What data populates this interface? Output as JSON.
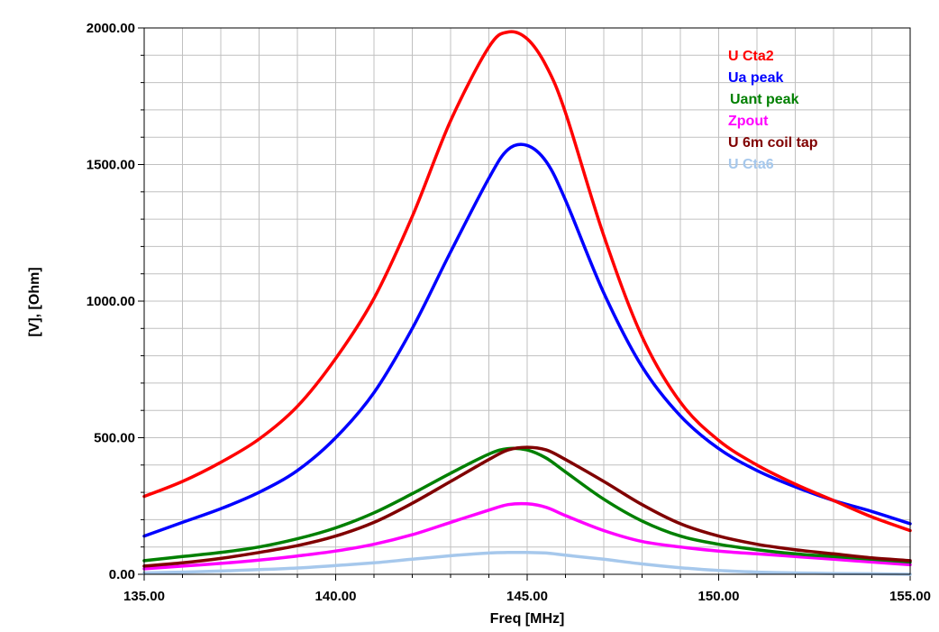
{
  "chart_data": {
    "type": "line",
    "title": "",
    "xlabel": "Freq [MHz]",
    "ylabel": "[V], [Ohm]",
    "xlim": [
      135,
      155
    ],
    "ylim": [
      0,
      2000
    ],
    "grid": true,
    "legend_position": "top-right",
    "x_ticks": [
      "135.00",
      "140.00",
      "145.00",
      "150.00",
      "155.00"
    ],
    "y_ticks": [
      "0.00",
      "500.00",
      "1000.00",
      "1500.00",
      "2000.00"
    ],
    "x": [
      135,
      136,
      137,
      138,
      139,
      140,
      141,
      142,
      143,
      144,
      144.5,
      145,
      145.5,
      146,
      147,
      148,
      149,
      150,
      151,
      152,
      153,
      154,
      155
    ],
    "series": [
      {
        "name": "U Cta2",
        "color": "#ff0000",
        "values": [
          285,
          340,
          410,
          495,
          615,
          790,
          1010,
          1310,
          1660,
          1930,
          1985,
          1960,
          1860,
          1690,
          1240,
          870,
          630,
          490,
          400,
          330,
          270,
          210,
          160
        ]
      },
      {
        "name": "Ua peak",
        "color": "#0000ff",
        "values": [
          140,
          190,
          240,
          300,
          380,
          500,
          665,
          900,
          1180,
          1450,
          1555,
          1570,
          1510,
          1370,
          1030,
          760,
          580,
          460,
          380,
          320,
          270,
          230,
          185
        ]
      },
      {
        "name": "Uant peak",
        "color": "#008000",
        "values": [
          50,
          65,
          80,
          100,
          130,
          170,
          225,
          295,
          370,
          440,
          460,
          455,
          425,
          375,
          275,
          195,
          140,
          110,
          90,
          75,
          65,
          55,
          45
        ]
      },
      {
        "name": "Zpout",
        "color": "#ff00ff",
        "values": [
          20,
          30,
          40,
          52,
          67,
          85,
          110,
          145,
          190,
          235,
          255,
          258,
          245,
          215,
          160,
          120,
          100,
          85,
          75,
          65,
          55,
          45,
          35
        ]
      },
      {
        "name": "U 6m coil tap",
        "color": "#800000",
        "values": [
          30,
          42,
          58,
          80,
          105,
          140,
          190,
          260,
          340,
          420,
          455,
          465,
          455,
          420,
          340,
          255,
          185,
          140,
          110,
          90,
          75,
          60,
          50
        ]
      },
      {
        "name": "U Cta6",
        "color": "#a6c8ec",
        "values": [
          5,
          8,
          12,
          17,
          23,
          32,
          42,
          55,
          68,
          78,
          80,
          80,
          78,
          70,
          55,
          38,
          24,
          14,
          8,
          5,
          3,
          2,
          0
        ]
      }
    ]
  }
}
